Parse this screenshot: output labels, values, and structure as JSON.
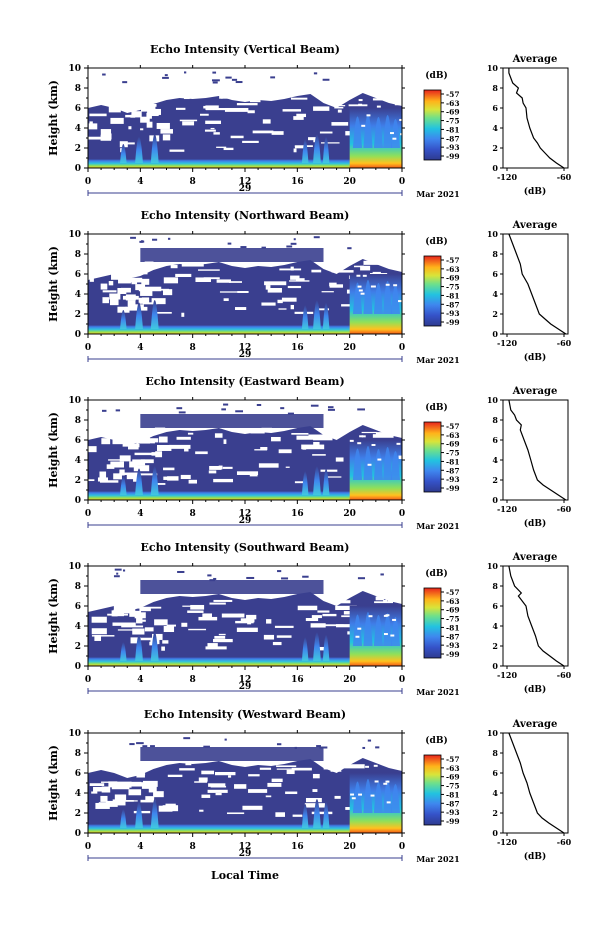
{
  "common": {
    "ylabel": "Height (km)",
    "xlabel": "Local Time",
    "date_label": "Mar 2021",
    "colorbar_unit": "(dB)",
    "colorbar_ticks": [
      "-57",
      "-63",
      "-69",
      "-75",
      "-81",
      "-87",
      "-93",
      "-99"
    ],
    "avg_title": "Average",
    "avg_xlabel": "(dB)",
    "x_ticks": [
      "0",
      "4",
      "8",
      "12",
      "16",
      "20",
      "0"
    ],
    "y_ticks": [
      "0",
      "2",
      "4",
      "6",
      "8",
      "10"
    ],
    "colors": {
      "background_echo": "#3a3f8f",
      "low": "#2f3e9e",
      "mid_low": "#3f7ee8",
      "mid": "#22c3e0",
      "mid_high": "#a8e04a",
      "high": "#ffd21f",
      "very_high": "#ff7a10",
      "max": "#e8281e"
    }
  },
  "chart_data": [
    {
      "type": "heatmap",
      "title": "Echo Intensity (Vertical Beam)",
      "day_label": "29",
      "avg_xticks": [
        "-120",
        "-60"
      ],
      "xlim": [
        0,
        24
      ],
      "ylim": [
        0,
        10
      ],
      "avg_profile": [
        [
          -60,
          0
        ],
        [
          -68,
          0.5
        ],
        [
          -75,
          1
        ],
        [
          -80,
          1.5
        ],
        [
          -85,
          2
        ],
        [
          -88,
          2.5
        ],
        [
          -92,
          3
        ],
        [
          -96,
          4
        ],
        [
          -99,
          5
        ],
        [
          -100,
          6
        ],
        [
          -103,
          6.5
        ],
        [
          -104,
          7
        ],
        [
          -110,
          7.5
        ],
        [
          -108,
          8
        ],
        [
          -114,
          8.5
        ],
        [
          -116,
          9
        ],
        [
          -118,
          9.5
        ],
        [
          -118,
          10
        ]
      ]
    },
    {
      "type": "heatmap",
      "title": "Echo Intensity (Northward Beam)",
      "day_label": "29",
      "avg_xticks": [
        "-120",
        "-60"
      ],
      "xlim": [
        0,
        24
      ],
      "ylim": [
        0,
        10
      ],
      "avg_profile": [
        [
          -58,
          0
        ],
        [
          -66,
          0.5
        ],
        [
          -74,
          1
        ],
        [
          -80,
          1.5
        ],
        [
          -86,
          2
        ],
        [
          -90,
          3
        ],
        [
          -94,
          4
        ],
        [
          -96,
          4.5
        ],
        [
          -98,
          5
        ],
        [
          -104,
          6
        ],
        [
          -106,
          7
        ],
        [
          -110,
          8
        ],
        [
          -114,
          9
        ],
        [
          -118,
          10
        ]
      ]
    },
    {
      "type": "heatmap",
      "title": "Echo Intensity (Eastward Beam)",
      "day_label": "29",
      "avg_xticks": [
        "-120",
        "-60"
      ],
      "xlim": [
        0,
        24
      ],
      "ylim": [
        0,
        10
      ],
      "avg_profile": [
        [
          -58,
          0
        ],
        [
          -66,
          0.5
        ],
        [
          -74,
          1
        ],
        [
          -82,
          1.5
        ],
        [
          -88,
          2
        ],
        [
          -92,
          3
        ],
        [
          -95,
          4
        ],
        [
          -98,
          5
        ],
        [
          -102,
          6
        ],
        [
          -106,
          7
        ],
        [
          -105,
          7.5
        ],
        [
          -110,
          8
        ],
        [
          -112,
          8.5
        ],
        [
          -116,
          9
        ],
        [
          -118,
          10
        ]
      ]
    },
    {
      "type": "heatmap",
      "title": "Echo Intensity (Southward Beam)",
      "day_label": "29",
      "avg_xticks": [
        "-120",
        "-60"
      ],
      "xlim": [
        0,
        24
      ],
      "ylim": [
        0,
        10
      ],
      "avg_profile": [
        [
          -60,
          0
        ],
        [
          -68,
          0.5
        ],
        [
          -75,
          1
        ],
        [
          -82,
          1.5
        ],
        [
          -87,
          2
        ],
        [
          -90,
          3
        ],
        [
          -94,
          4
        ],
        [
          -98,
          5
        ],
        [
          -100,
          6
        ],
        [
          -104,
          6.5
        ],
        [
          -108,
          7
        ],
        [
          -105,
          7.3
        ],
        [
          -112,
          8
        ],
        [
          -116,
          9
        ],
        [
          -118,
          10
        ]
      ]
    },
    {
      "type": "heatmap",
      "title": "Echo Intensity (Westward Beam)",
      "day_label": "29",
      "avg_xticks": [
        "-120",
        "-60"
      ],
      "xlim": [
        0,
        24
      ],
      "ylim": [
        0,
        10
      ],
      "avg_profile": [
        [
          -60,
          0
        ],
        [
          -68,
          0.5
        ],
        [
          -76,
          1
        ],
        [
          -83,
          1.5
        ],
        [
          -88,
          2
        ],
        [
          -92,
          3
        ],
        [
          -96,
          4
        ],
        [
          -99,
          5
        ],
        [
          -103,
          6
        ],
        [
          -106,
          7
        ],
        [
          -110,
          8
        ],
        [
          -114,
          9
        ],
        [
          -118,
          10
        ]
      ]
    }
  ]
}
